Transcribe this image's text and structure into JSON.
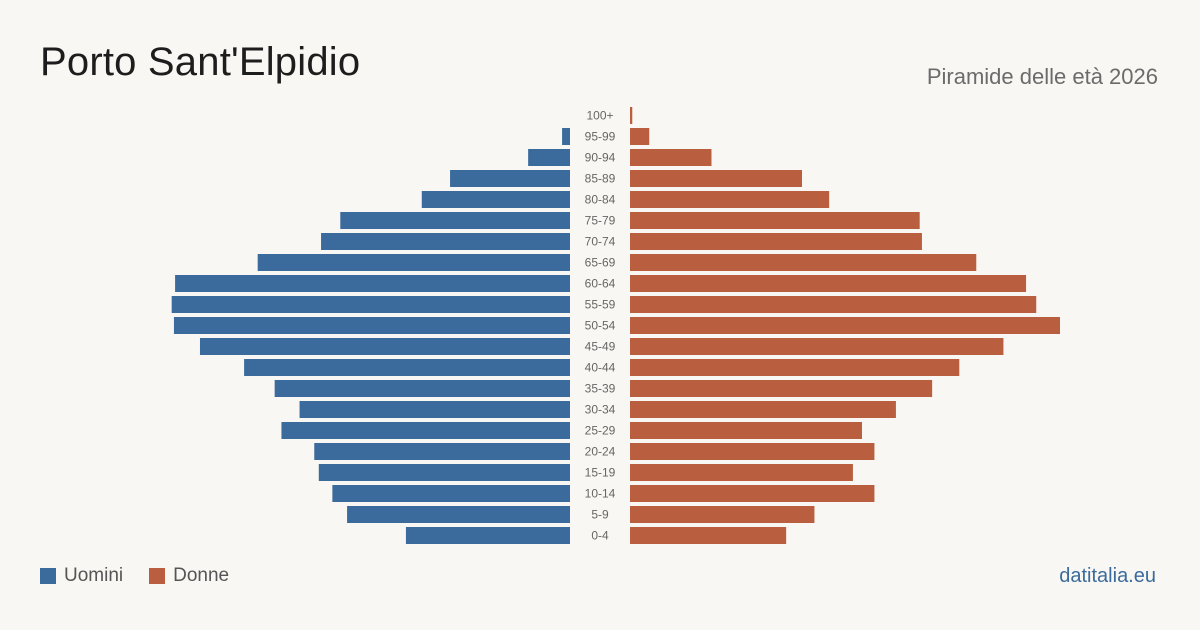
{
  "header": {
    "title": "Porto Sant'Elpidio",
    "subtitle": "Piramide delle età 2026"
  },
  "legend": {
    "men_label": "Uomini",
    "women_label": "Donne"
  },
  "footer": {
    "source": "datitalia.eu"
  },
  "colors": {
    "men": "#3b6b9c",
    "women": "#b95e3e",
    "background": "#f9f7f3"
  },
  "chart_data": {
    "type": "bar",
    "orientation": "horizontal-pyramid",
    "categories": [
      "100+",
      "95-99",
      "90-94",
      "85-89",
      "80-84",
      "75-79",
      "70-74",
      "65-69",
      "60-64",
      "55-59",
      "50-54",
      "45-49",
      "40-44",
      "35-39",
      "30-34",
      "25-29",
      "20-24",
      "15-19",
      "10-14",
      "5-9",
      "0-4"
    ],
    "series": [
      {
        "name": "Uomini",
        "values": [
          0,
          7,
          37,
          106,
          131,
          203,
          220,
          276,
          349,
          352,
          350,
          327,
          288,
          261,
          239,
          255,
          226,
          222,
          210,
          197,
          145
        ]
      },
      {
        "name": "Donne",
        "values": [
          2,
          17,
          72,
          152,
          176,
          256,
          258,
          306,
          350,
          359,
          380,
          330,
          291,
          267,
          235,
          205,
          216,
          197,
          216,
          163,
          138
        ]
      }
    ],
    "xlim": [
      0,
      380
    ],
    "grid": false,
    "legend_position": "bottom-left"
  }
}
